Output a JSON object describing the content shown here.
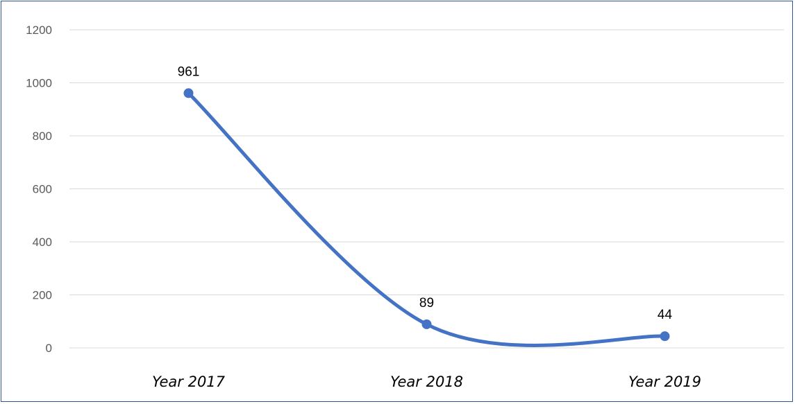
{
  "chart_data": {
    "type": "line",
    "title": "",
    "xlabel": "",
    "ylabel": "",
    "categories": [
      "Year 2017",
      "Year 2018",
      "Year 2019"
    ],
    "series": [
      {
        "values": [
          961,
          89,
          44
        ],
        "color": "#4472c4",
        "smooth": true,
        "markers": true
      }
    ],
    "data_labels": [
      "961",
      "89",
      "44"
    ],
    "ylim": [
      0,
      1200
    ],
    "yticks": [
      0,
      200,
      400,
      600,
      800,
      1000,
      1200
    ],
    "grid": true,
    "legend": "none",
    "colors": {
      "frame": "#2f5597",
      "grid": "#d9d9d9",
      "line": "#4472c4"
    }
  }
}
